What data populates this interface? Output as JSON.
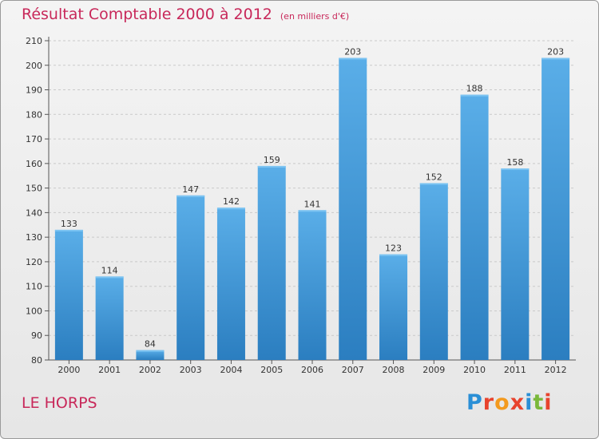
{
  "header": {
    "title": "Résultat Comptable 2000 à 2012",
    "subtitle": "(en milliers d'€)"
  },
  "footer": {
    "location": "LE HORPS",
    "brand": "Proxiti"
  },
  "colors": {
    "title": "#c8285a",
    "bar_top": "#5aaee8",
    "bar_bottom": "#2b7ec0",
    "grid": "#c9c9c9"
  },
  "chart_data": {
    "type": "bar",
    "title": "Résultat Comptable 2000 à 2012",
    "subtitle": "(en milliers d'€)",
    "xlabel": "",
    "ylabel": "",
    "categories": [
      "2000",
      "2001",
      "2002",
      "2003",
      "2004",
      "2005",
      "2006",
      "2007",
      "2008",
      "2009",
      "2010",
      "2011",
      "2012"
    ],
    "values": [
      133,
      114,
      84,
      147,
      142,
      159,
      141,
      203,
      123,
      152,
      188,
      158,
      203
    ],
    "ylim": [
      80,
      210
    ],
    "yticks": [
      80,
      90,
      100,
      110,
      120,
      130,
      140,
      150,
      160,
      170,
      180,
      190,
      200,
      210
    ],
    "grid": true,
    "legend": "none"
  }
}
